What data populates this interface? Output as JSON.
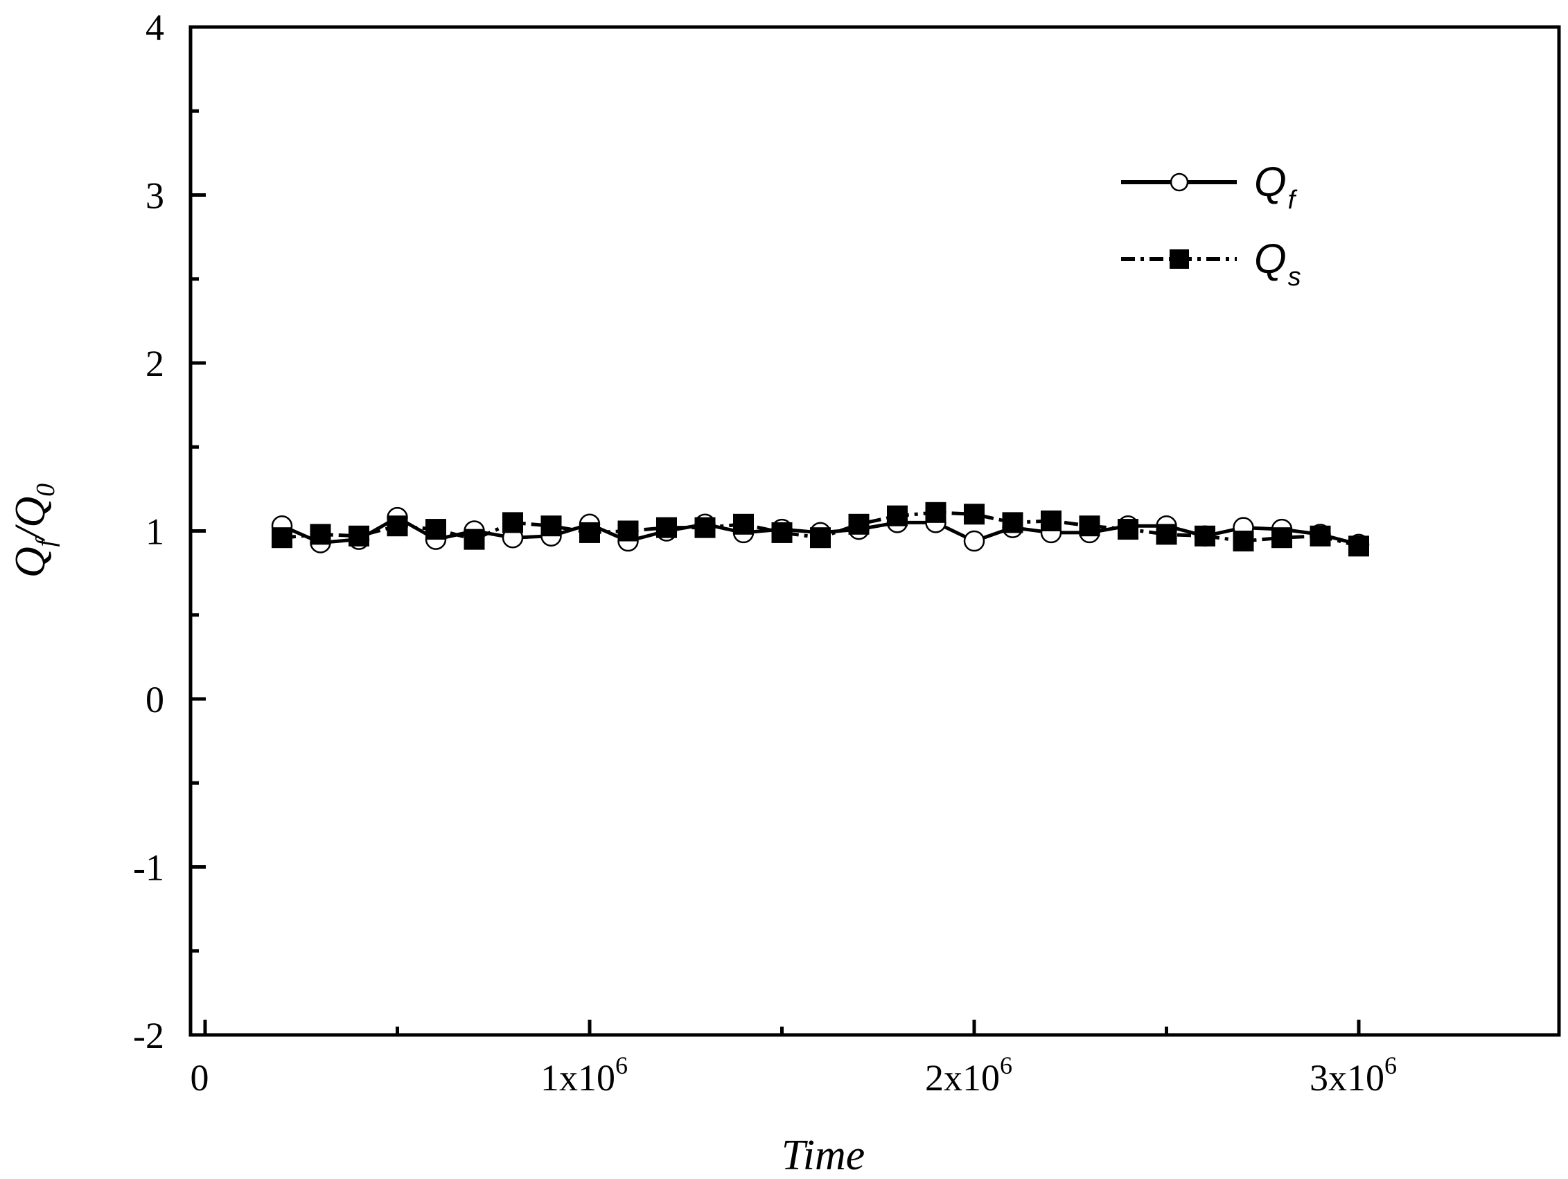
{
  "chart_data": {
    "type": "line",
    "xlabel": "Time",
    "ylabel_main_1": "Q",
    "ylabel_sub_1": "f",
    "ylabel_sep": "/",
    "ylabel_main_2": "Q",
    "ylabel_sub_2": "0",
    "xlim": [
      -50000,
      3500000
    ],
    "ylim": [
      -2,
      4
    ],
    "xticks": [
      {
        "value": 0,
        "base": "0",
        "exp": ""
      },
      {
        "value": 1000000,
        "base": "1x10",
        "exp": "6"
      },
      {
        "value": 2000000,
        "base": "2x10",
        "exp": "6"
      },
      {
        "value": 3000000,
        "base": "3x10",
        "exp": "6"
      }
    ],
    "xminor": [
      500000,
      1500000,
      2500000
    ],
    "yticks": [
      {
        "value": -2,
        "label": "-2"
      },
      {
        "value": -1,
        "label": "-1"
      },
      {
        "value": 0,
        "label": "0"
      },
      {
        "value": 1,
        "label": "1"
      },
      {
        "value": 2,
        "label": "2"
      },
      {
        "value": 3,
        "label": "3"
      },
      {
        "value": 4,
        "label": "4"
      }
    ],
    "yminor": [
      -1.5,
      -0.5,
      0.5,
      1.5,
      2.5,
      3.5
    ],
    "x": [
      200000,
      300000,
      400000,
      500000,
      600000,
      700000,
      800000,
      900000,
      1000000,
      1100000,
      1200000,
      1300000,
      1400000,
      1500000,
      1600000,
      1700000,
      1800000,
      1900000,
      2000000,
      2100000,
      2200000,
      2300000,
      2400000,
      2500000,
      2600000,
      2700000,
      2800000,
      2900000,
      3000000
    ],
    "series": [
      {
        "name": "Q",
        "sub": "f",
        "marker": "open-circle",
        "line": "solid",
        "values": [
          1.03,
          0.93,
          0.95,
          1.08,
          0.95,
          1.0,
          0.96,
          0.97,
          1.04,
          0.94,
          1.0,
          1.04,
          0.99,
          1.01,
          0.99,
          1.01,
          1.05,
          1.05,
          0.94,
          1.02,
          0.99,
          0.99,
          1.03,
          1.03,
          0.97,
          1.02,
          1.01,
          0.98,
          0.92
        ]
      },
      {
        "name": "Q",
        "sub": "s",
        "marker": "filled-square",
        "line": "dash-dot",
        "values": [
          0.96,
          0.98,
          0.97,
          1.03,
          1.01,
          0.95,
          1.05,
          1.03,
          0.99,
          1.0,
          1.02,
          1.02,
          1.04,
          0.99,
          0.96,
          1.04,
          1.09,
          1.11,
          1.1,
          1.05,
          1.06,
          1.03,
          1.01,
          0.98,
          0.97,
          0.94,
          0.96,
          0.97,
          0.91
        ]
      }
    ],
    "legend_position": "top-right",
    "grid": false
  }
}
